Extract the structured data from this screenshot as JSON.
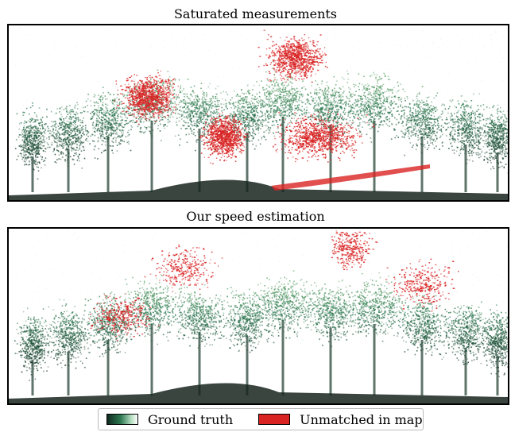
{
  "panels": [
    {
      "title": "Saturated measurements",
      "red_level": 0.85
    },
    {
      "title": "Our speed estimation",
      "red_level": 0.3
    }
  ],
  "legend": {
    "ground_truth_label": "Ground truth",
    "unmatched_label": "Unmatched in map"
  },
  "colors": {
    "ground_truth_dark": "#0f2a20",
    "ground_truth_mid": "#2f7a52",
    "ground_truth_light": "#8fd07a",
    "unmatched": "#d92323"
  }
}
